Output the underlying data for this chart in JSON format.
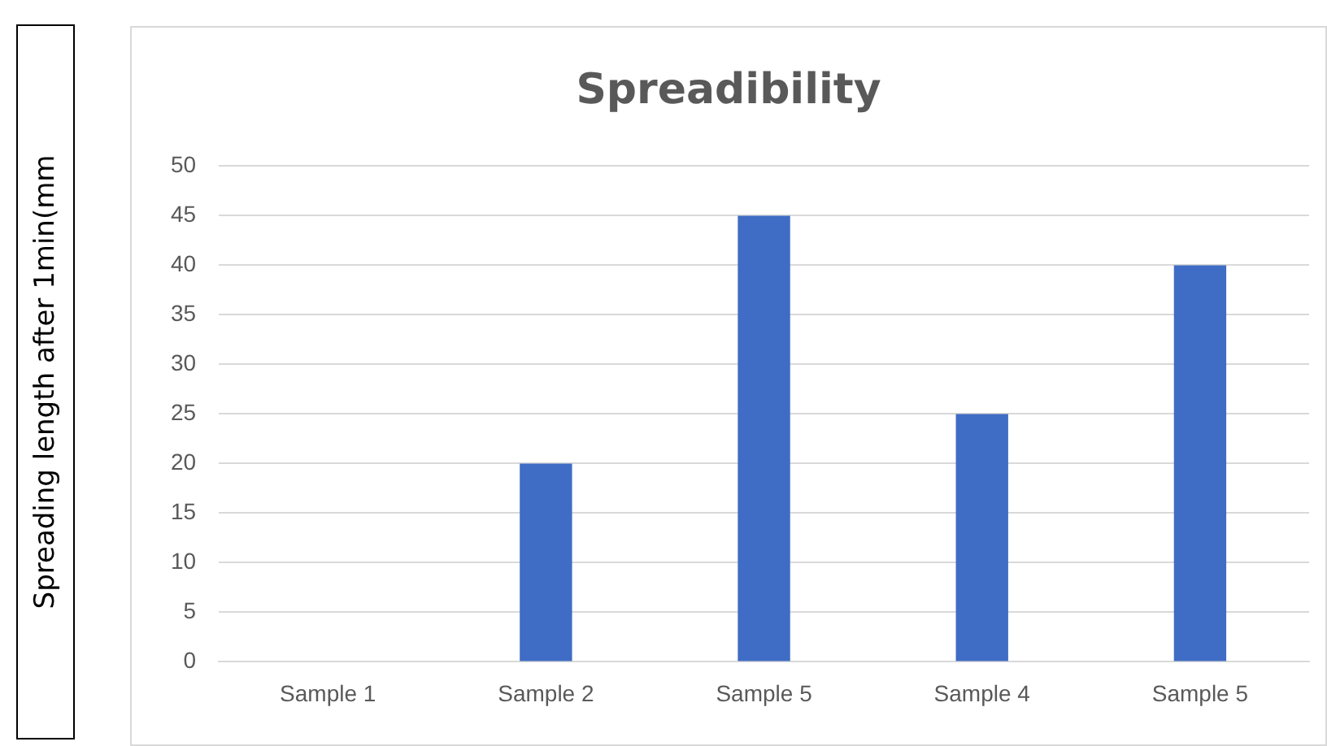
{
  "chart_data": {
    "type": "bar",
    "title": "Spreadibility",
    "ylabel": "Spreading length after 1min(mm",
    "categories": [
      "Sample 1",
      "Sample 2",
      "Sample 5",
      "Sample 4",
      "Sample 5"
    ],
    "values": [
      0,
      20,
      45,
      25,
      40
    ],
    "color": "#3f6cc4",
    "ylim": [
      0,
      50
    ],
    "yticks": [
      0,
      5,
      10,
      15,
      20,
      25,
      30,
      35,
      40,
      45,
      50
    ],
    "grid": "y",
    "legend": false
  }
}
